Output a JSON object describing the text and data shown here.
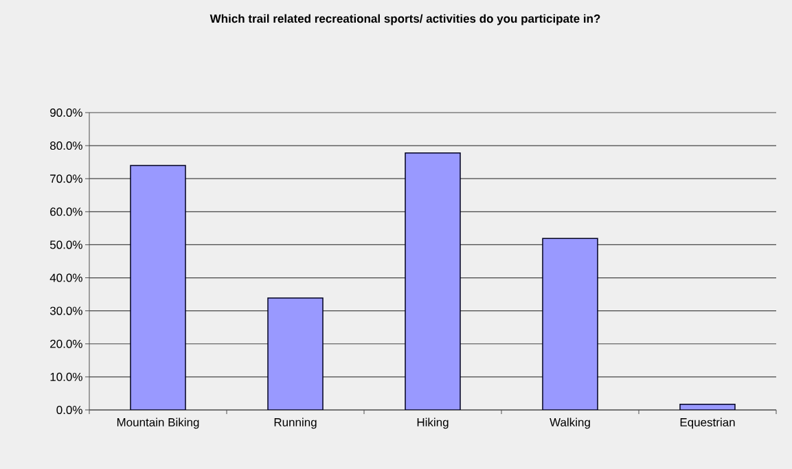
{
  "chart_data": {
    "type": "bar",
    "title": "Which trail related recreational sports/ activities do you participate in?",
    "categories": [
      "Mountain Biking",
      "Running",
      "Hiking",
      "Walking",
      "Equestrian"
    ],
    "values": [
      74.0,
      33.9,
      77.8,
      51.9,
      1.7
    ],
    "color": "#9999ff",
    "ylim": [
      0,
      90
    ],
    "yticks": [
      {
        "value": 0,
        "label": "0.0%"
      },
      {
        "value": 10,
        "label": "10.0%"
      },
      {
        "value": 20,
        "label": "20.0%"
      },
      {
        "value": 30,
        "label": "30.0%"
      },
      {
        "value": 40,
        "label": "40.0%"
      },
      {
        "value": 50,
        "label": "50.0%"
      },
      {
        "value": 60,
        "label": "60.0%"
      },
      {
        "value": 70,
        "label": "70.0%"
      },
      {
        "value": 80,
        "label": "80.0%"
      },
      {
        "value": 90,
        "label": "90.0%"
      }
    ],
    "grid": "y"
  }
}
